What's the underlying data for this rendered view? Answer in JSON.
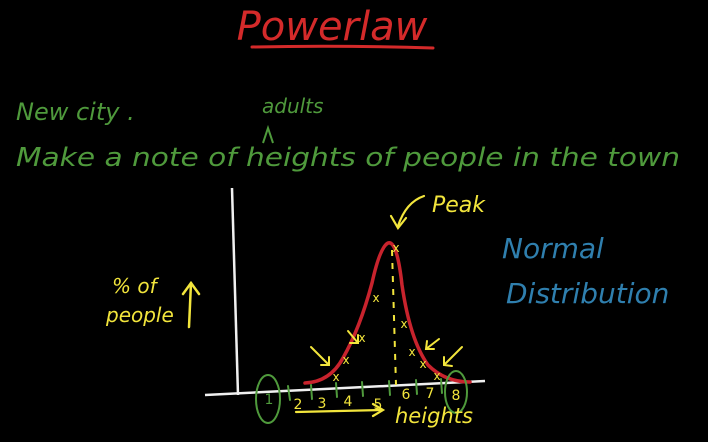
{
  "title": "Powerlaw",
  "line1": "New city .",
  "insert": "adults",
  "line2": "Make a note of heights of people in the town",
  "peak_label": "Peak",
  "dist_line1": "Normal",
  "dist_line2": "Distribution",
  "ylabel_1": "% of",
  "ylabel_2": "people",
  "xlabel": "heights",
  "x_ticks": [
    "1",
    "2",
    "3",
    "4",
    "5",
    "6",
    "7",
    "8"
  ],
  "colors": {
    "background": "#000000",
    "title": "#d42a2a",
    "green": "#4f9a3c",
    "yellow": "#f2e53c",
    "red": "#c8232d",
    "blue": "#2f7fae",
    "white": "#f0f0f0"
  }
}
